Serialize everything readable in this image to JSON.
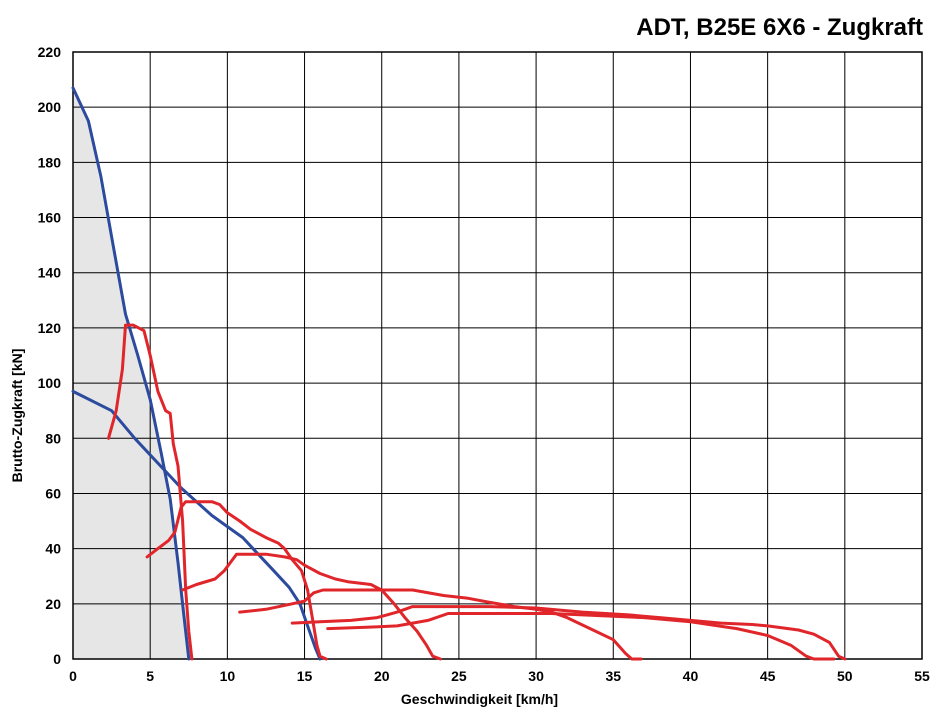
{
  "chart_data": {
    "type": "line",
    "title": "ADT, B25E 6X6 - Zugkraft",
    "xlabel": "Geschwindigkeit [km/h]",
    "ylabel": "Brutto-Zugkraft [kN]",
    "xlim": [
      0,
      55
    ],
    "ylim": [
      0,
      220
    ],
    "xticks": [
      0,
      5,
      10,
      15,
      20,
      25,
      30,
      35,
      40,
      45,
      50,
      55
    ],
    "yticks": [
      0,
      20,
      40,
      60,
      80,
      100,
      120,
      140,
      160,
      180,
      200,
      220
    ],
    "grid": true,
    "fill_area": [
      [
        0,
        207
      ],
      [
        1,
        195
      ],
      [
        2,
        165
      ],
      [
        3,
        136
      ],
      [
        4,
        112
      ],
      [
        5,
        94
      ],
      [
        6,
        67
      ],
      [
        7,
        28
      ],
      [
        7.7,
        0
      ],
      [
        0,
        0
      ]
    ],
    "blue_series": [
      {
        "points": [
          [
            0,
            207
          ],
          [
            1,
            195
          ],
          [
            1.8,
            175
          ],
          [
            2.6,
            150
          ],
          [
            3.4,
            125
          ],
          [
            4.2,
            110
          ],
          [
            5,
            94
          ],
          [
            5.7,
            75
          ],
          [
            6.3,
            58
          ],
          [
            6.8,
            35
          ],
          [
            7.2,
            15
          ],
          [
            7.5,
            0
          ]
        ]
      },
      {
        "points": [
          [
            0,
            97
          ],
          [
            2.5,
            90
          ],
          [
            4,
            80
          ],
          [
            5.5,
            71
          ],
          [
            7,
            62
          ],
          [
            8,
            57
          ],
          [
            9,
            52
          ],
          [
            10,
            48
          ],
          [
            11,
            44
          ],
          [
            12,
            38
          ],
          [
            13,
            32
          ],
          [
            14,
            26
          ],
          [
            14.7,
            20
          ],
          [
            15.2,
            12
          ],
          [
            15.7,
            4
          ],
          [
            16,
            0
          ]
        ]
      }
    ],
    "red_series": [
      {
        "points": [
          [
            2.3,
            80
          ],
          [
            2.8,
            90
          ],
          [
            3.2,
            105
          ],
          [
            3.4,
            121
          ],
          [
            3.9,
            121
          ],
          [
            4.6,
            119
          ],
          [
            5,
            110
          ],
          [
            5.5,
            97
          ],
          [
            6,
            90
          ],
          [
            6.3,
            89
          ],
          [
            6.5,
            78
          ],
          [
            6.8,
            70
          ],
          [
            7.1,
            50
          ],
          [
            7.3,
            25
          ],
          [
            7.5,
            10
          ],
          [
            7.7,
            0
          ]
        ]
      },
      {
        "points": [
          [
            4.8,
            37
          ],
          [
            5.5,
            40
          ],
          [
            6.2,
            43
          ],
          [
            6.6,
            46
          ],
          [
            7,
            55
          ],
          [
            7.3,
            57
          ],
          [
            8,
            57
          ],
          [
            9,
            57
          ],
          [
            9.5,
            56
          ],
          [
            10,
            53
          ],
          [
            10.8,
            50
          ],
          [
            11.5,
            47
          ],
          [
            12.5,
            44
          ],
          [
            13.3,
            42
          ],
          [
            13.7,
            40
          ],
          [
            14.2,
            36
          ],
          [
            14.8,
            32
          ],
          [
            15.2,
            25
          ],
          [
            15.5,
            15
          ],
          [
            15.8,
            5
          ],
          [
            16,
            1
          ],
          [
            16.4,
            0
          ]
        ]
      },
      {
        "points": [
          [
            7.1,
            25
          ],
          [
            8,
            27
          ],
          [
            9.2,
            29
          ],
          [
            9.8,
            32
          ],
          [
            10.2,
            35
          ],
          [
            10.6,
            38
          ],
          [
            11,
            38
          ],
          [
            12.5,
            38
          ],
          [
            13.7,
            37
          ],
          [
            14.5,
            36
          ],
          [
            15,
            34
          ],
          [
            16,
            31
          ],
          [
            17,
            29
          ],
          [
            17.8,
            28
          ],
          [
            19.3,
            27
          ],
          [
            20,
            25
          ],
          [
            20.8,
            20
          ],
          [
            21.5,
            15
          ],
          [
            22.3,
            10
          ],
          [
            22.9,
            5
          ],
          [
            23.3,
            1
          ],
          [
            23.8,
            0
          ]
        ]
      },
      {
        "points": [
          [
            10.8,
            17
          ],
          [
            12.5,
            18
          ],
          [
            14.2,
            20
          ],
          [
            15,
            21
          ],
          [
            15.6,
            24
          ],
          [
            16.2,
            25
          ],
          [
            18,
            25
          ],
          [
            20,
            25
          ],
          [
            22,
            25
          ],
          [
            24,
            23
          ],
          [
            25.6,
            22
          ],
          [
            27,
            20.5
          ],
          [
            28.6,
            19
          ],
          [
            30,
            18
          ],
          [
            31,
            17
          ],
          [
            32,
            15
          ],
          [
            33.5,
            11
          ],
          [
            35,
            7
          ],
          [
            35.8,
            2
          ],
          [
            36.2,
            0
          ],
          [
            36.8,
            0
          ]
        ]
      },
      {
        "points": [
          [
            14.2,
            13
          ],
          [
            16,
            13.5
          ],
          [
            18,
            14
          ],
          [
            19.7,
            15
          ],
          [
            21,
            17
          ],
          [
            22,
            19
          ],
          [
            24,
            19
          ],
          [
            27,
            19
          ],
          [
            30,
            18.5
          ],
          [
            33,
            17
          ],
          [
            36,
            16
          ],
          [
            38,
            15
          ],
          [
            40,
            14
          ],
          [
            42,
            13
          ],
          [
            44,
            12.5
          ],
          [
            45,
            12
          ],
          [
            47,
            10.5
          ],
          [
            48,
            9
          ],
          [
            49,
            6
          ],
          [
            49.6,
            1
          ],
          [
            50,
            0
          ]
        ]
      },
      {
        "points": [
          [
            16.5,
            11
          ],
          [
            19,
            11.5
          ],
          [
            21,
            12
          ],
          [
            23,
            14
          ],
          [
            24.3,
            16.5
          ],
          [
            27,
            16.5
          ],
          [
            29,
            16.5
          ],
          [
            31,
            16.5
          ],
          [
            33,
            16
          ],
          [
            35,
            15.5
          ],
          [
            37,
            15
          ],
          [
            40,
            13.5
          ],
          [
            43,
            11
          ],
          [
            45,
            8.5
          ],
          [
            46.5,
            5
          ],
          [
            47.5,
            1
          ],
          [
            48,
            0
          ],
          [
            49.3,
            0
          ]
        ]
      }
    ],
    "colors": {
      "blue": "#2c4b9e",
      "red": "#e0262a",
      "fill": "#e6e6e6",
      "grid": "#000000"
    }
  }
}
